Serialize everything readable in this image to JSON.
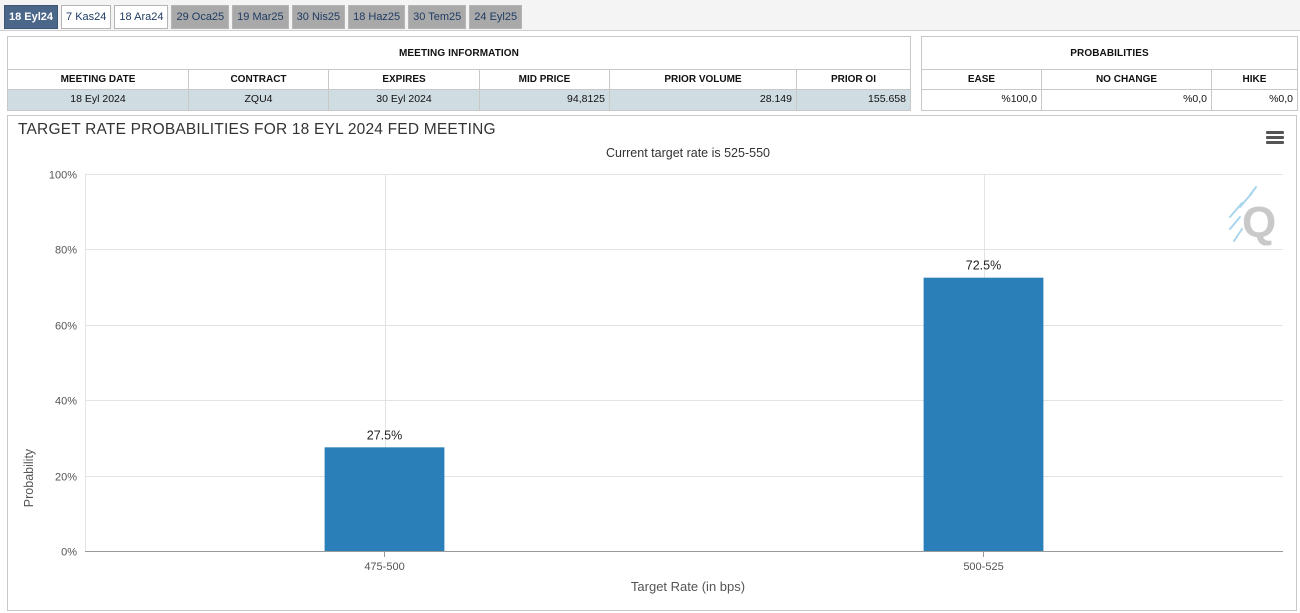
{
  "tabs": [
    {
      "label": "18 Eyl24",
      "state": "active"
    },
    {
      "label": "7 Kas24",
      "state": "light"
    },
    {
      "label": "18 Ara24",
      "state": "light"
    },
    {
      "label": "29 Oca25",
      "state": "normal"
    },
    {
      "label": "19 Mar25",
      "state": "normal"
    },
    {
      "label": "30 Nis25",
      "state": "normal"
    },
    {
      "label": "18 Haz25",
      "state": "normal"
    },
    {
      "label": "30 Tem25",
      "state": "normal"
    },
    {
      "label": "24 Eyl25",
      "state": "normal"
    }
  ],
  "meeting_info": {
    "title": "MEETING INFORMATION",
    "headers": [
      "MEETING DATE",
      "CONTRACT",
      "EXPIRES",
      "MID PRICE",
      "PRIOR VOLUME",
      "PRIOR OI"
    ],
    "values": [
      "18 Eyl 2024",
      "ZQU4",
      "30 Eyl 2024",
      "94,8125",
      "28.149",
      "155.658"
    ]
  },
  "probabilities": {
    "title": "PROBABILITIES",
    "headers": [
      "EASE",
      "NO CHANGE",
      "HIKE"
    ],
    "values": [
      "%100,0",
      "%0,0",
      "%0,0"
    ]
  },
  "chart_data": {
    "type": "bar",
    "title": "TARGET RATE PROBABILITIES FOR 18 EYL 2024 FED MEETING",
    "subtitle": "Current target rate is 525-550",
    "xlabel": "Target Rate (in bps)",
    "ylabel": "Probability",
    "categories": [
      "475-500",
      "500-525"
    ],
    "values": [
      27.5,
      72.5
    ],
    "data_labels": [
      "27.5%",
      "72.5%"
    ],
    "ylim": [
      0,
      100
    ],
    "yticks": [
      0,
      20,
      40,
      60,
      80,
      100
    ],
    "ytick_labels": [
      "0%",
      "20%",
      "40%",
      "60%",
      "80%",
      "100%"
    ],
    "grid": true,
    "legend": "none",
    "colors": {
      "bar": "#2b7fb8",
      "grid": "#e3e3e3",
      "axis": "#999999"
    }
  },
  "icons": {
    "menu": "hamburger-menu-icon",
    "logo": "q-watermark-logo"
  }
}
